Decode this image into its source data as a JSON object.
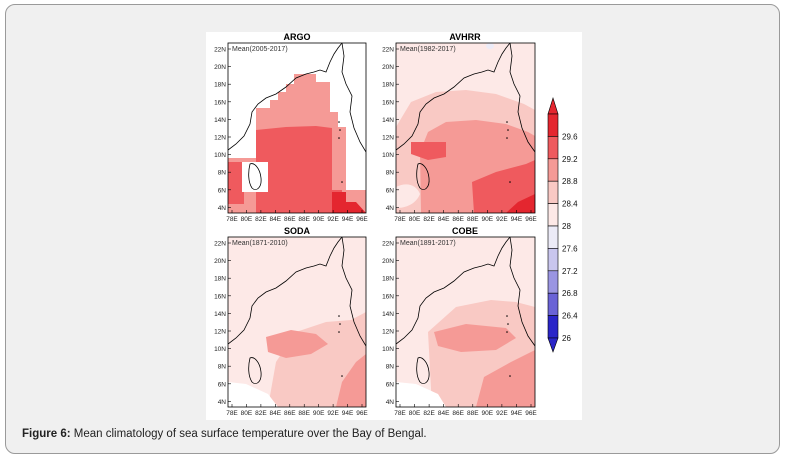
{
  "figure": {
    "panels": [
      {
        "title": "ARGO",
        "subtitle": "Mean(2005-2017)"
      },
      {
        "title": "AVHRR",
        "subtitle": "Mean(1982-2017)"
      },
      {
        "title": "SODA",
        "subtitle": "Mean(1871-2010)"
      },
      {
        "title": "COBE",
        "subtitle": "Mean(1891-2017)"
      }
    ],
    "lat_ticks": [
      "22N",
      "20N",
      "18N",
      "16N",
      "14N",
      "12N",
      "10N",
      "8N",
      "6N",
      "4N"
    ],
    "lon_ticks": [
      "78E",
      "80E",
      "82E",
      "84E",
      "86E",
      "88E",
      "90E",
      "92E",
      "94E",
      "96E"
    ],
    "colorbar": {
      "labels": [
        "29.6",
        "29.2",
        "28.8",
        "28.4",
        "28",
        "27.6",
        "27.2",
        "26.8",
        "26.4",
        "26"
      ],
      "colors": {
        "warm_top": "#e4262f",
        "warm_2": "#ef5a5e",
        "warm_3": "#f59a96",
        "warm_4": "#f9c9c4",
        "neutral_warm": "#fde9e7",
        "neutral_cool": "#ecebf7",
        "cool_1": "#c9c6ee",
        "cool_2": "#9a95e2",
        "cool_3": "#6a63d6",
        "cool_bottom": "#2a25c8"
      }
    }
  },
  "caption": {
    "label": "Figure 6:",
    "text": " Mean climatology of sea surface temperature over the Bay of Bengal."
  }
}
